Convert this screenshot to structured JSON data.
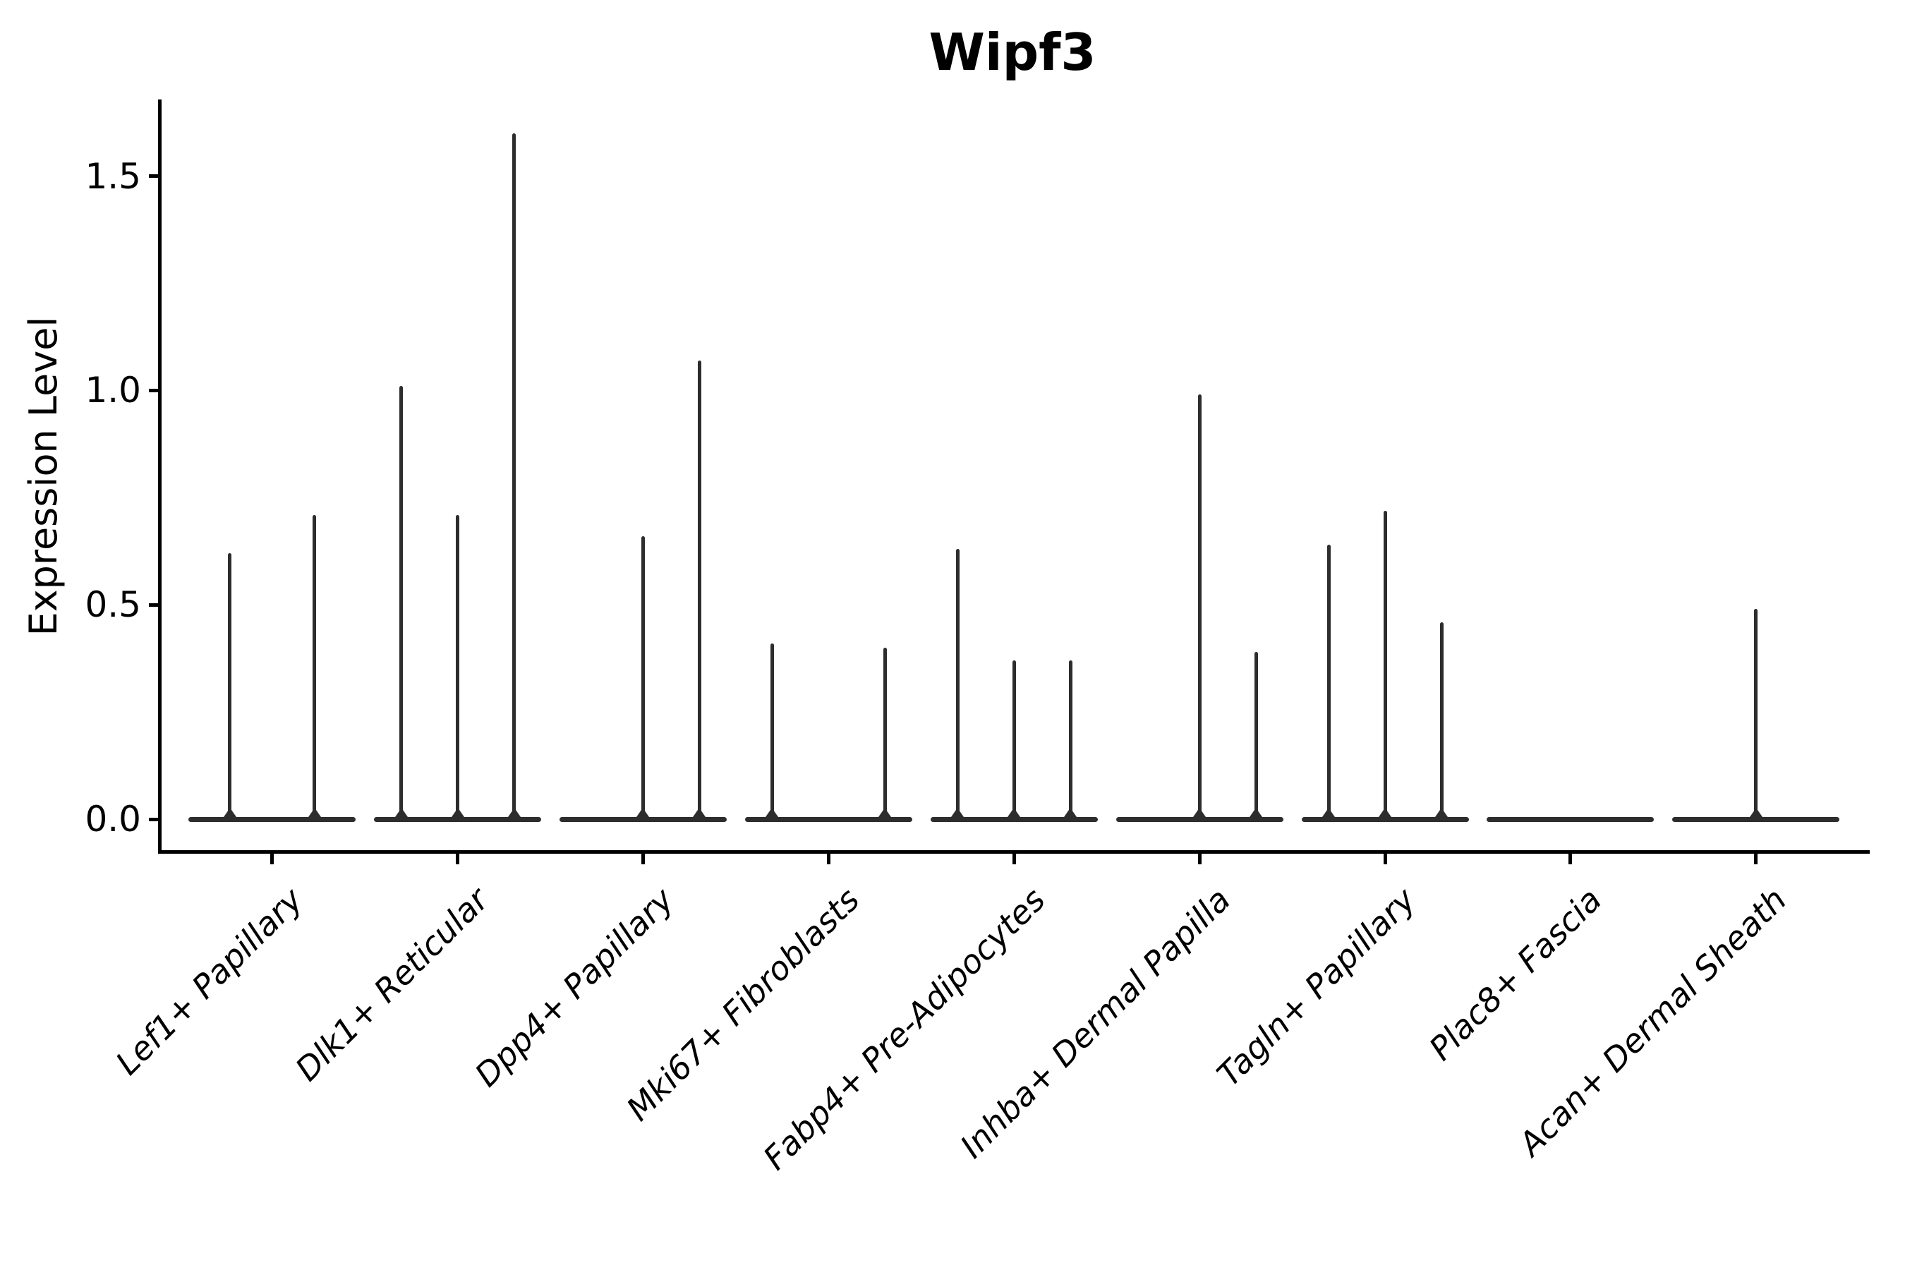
{
  "chart_data": {
    "type": "violin",
    "title": "Wipf3",
    "ylabel": "Expression Level",
    "xlabel": "",
    "ylim": [
      -0.09,
      1.68
    ],
    "y_ticks": [
      "0.0",
      "0.5",
      "1.0",
      "1.5"
    ],
    "grid": false,
    "legend": false,
    "x_tick_rotation_deg": 45,
    "colors": {
      "violin": "#2d2d2d",
      "axis": "#000000",
      "text": "#000000",
      "background": "#ffffff"
    },
    "categories": [
      {
        "label": "Lef1+ Papillary",
        "violin_maxima": [
          0.62,
          0.71
        ]
      },
      {
        "label": "Dlk1+ Reticular",
        "violin_maxima": [
          1.01,
          0.71,
          1.6
        ]
      },
      {
        "label": "Dpp4+ Papillary",
        "violin_maxima": [
          0,
          0.66,
          1.07
        ]
      },
      {
        "label": "Mki67+ Fibroblasts",
        "violin_maxima": [
          0.41,
          0,
          0.4
        ]
      },
      {
        "label": "Fabp4+ Pre-Adipocytes",
        "violin_maxima": [
          0.63,
          0.37,
          0.37
        ]
      },
      {
        "label": "Inhba+ Dermal Papilla",
        "violin_maxima": [
          0,
          0.99,
          0.39
        ]
      },
      {
        "label": "Tagln+ Papillary",
        "violin_maxima": [
          0.64,
          0.72,
          0.46
        ]
      },
      {
        "label": "Plac8+ Fascia",
        "violin_maxima": [
          0,
          0,
          0
        ]
      },
      {
        "label": "Acan+ Dermal Sheath",
        "violin_maxima": [
          0,
          0.49,
          0
        ]
      }
    ]
  }
}
